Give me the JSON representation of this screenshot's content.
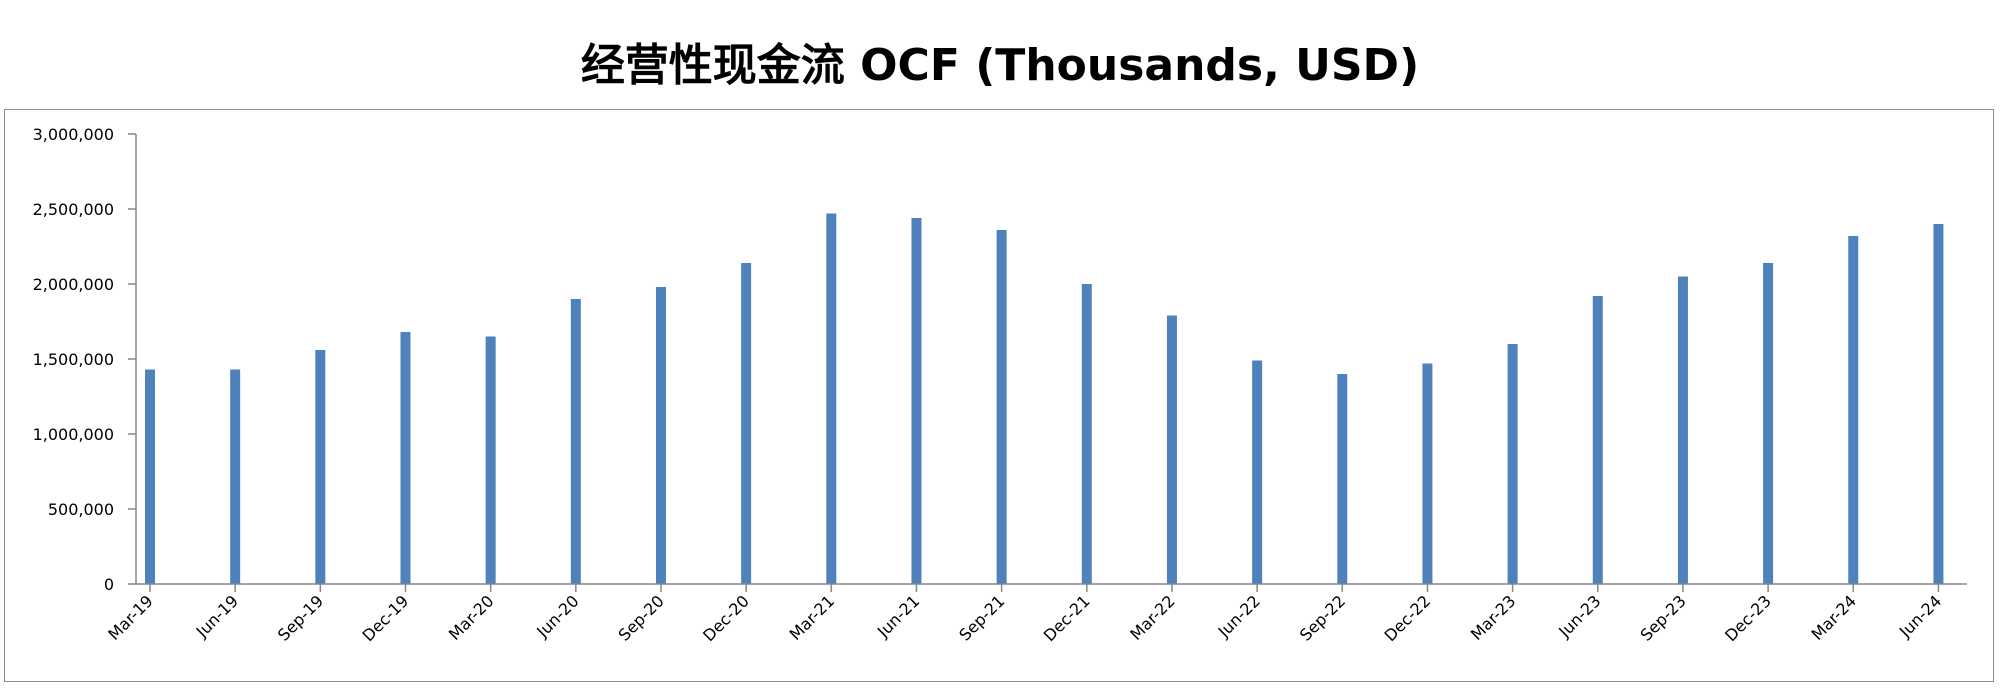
{
  "chart_data": {
    "type": "bar",
    "title": "经营性现金流 OCF (Thousands, USD)",
    "xlabel": "",
    "ylabel": "",
    "ylim": [
      0,
      3000000
    ],
    "yticks": [
      "0",
      "500,000",
      "1,000,000",
      "1,500,000",
      "2,000,000",
      "2,500,000",
      "3,000,000"
    ],
    "grid": false,
    "legend": "none",
    "bar_color": "#4F81BD",
    "categories": [
      "Mar-19",
      "Jun-19",
      "Sep-19",
      "Dec-19",
      "Mar-20",
      "Jun-20",
      "Sep-20",
      "Dec-20",
      "Mar-21",
      "Jun-21",
      "Sep-21",
      "Dec-21",
      "Mar-22",
      "Jun-22",
      "Sep-22",
      "Dec-22",
      "Mar-23",
      "Jun-23",
      "Sep-23",
      "Dec-23",
      "Mar-24",
      "Jun-24"
    ],
    "values": [
      1430000,
      1430000,
      1560000,
      1680000,
      1650000,
      1900000,
      1980000,
      2140000,
      2470000,
      2440000,
      2360000,
      2000000,
      1790000,
      1490000,
      1400000,
      1470000,
      1600000,
      1920000,
      2050000,
      2140000,
      2320000,
      2400000
    ]
  }
}
